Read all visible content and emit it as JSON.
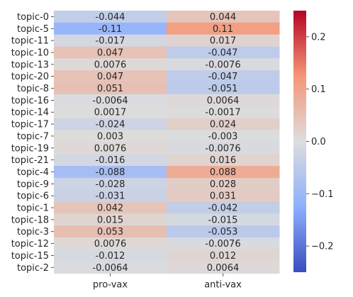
{
  "chart_data": {
    "type": "heatmap",
    "title": "",
    "xlabel": "",
    "ylabel": "",
    "columns": [
      "pro-vax",
      "anti-vax"
    ],
    "rows": [
      "topic-0",
      "topic-5",
      "topic-11",
      "topic-10",
      "topic-13",
      "topic-20",
      "topic-8",
      "topic-16",
      "topic-14",
      "topic-17",
      "topic-7",
      "topic-19",
      "topic-21",
      "topic-4",
      "topic-9",
      "topic-6",
      "topic-1",
      "topic-18",
      "topic-3",
      "topic-12",
      "topic-15",
      "topic-2"
    ],
    "values": [
      [
        -0.044,
        0.044
      ],
      [
        -0.11,
        0.11
      ],
      [
        -0.017,
        0.017
      ],
      [
        0.047,
        -0.047
      ],
      [
        0.0076,
        -0.0076
      ],
      [
        0.047,
        -0.047
      ],
      [
        0.051,
        -0.051
      ],
      [
        -0.0064,
        0.0064
      ],
      [
        0.0017,
        -0.0017
      ],
      [
        -0.024,
        0.024
      ],
      [
        0.003,
        -0.003
      ],
      [
        0.0076,
        -0.0076
      ],
      [
        -0.016,
        0.016
      ],
      [
        -0.088,
        0.088
      ],
      [
        -0.028,
        0.028
      ],
      [
        -0.031,
        0.031
      ],
      [
        0.042,
        -0.042
      ],
      [
        0.015,
        -0.015
      ],
      [
        0.053,
        -0.053
      ],
      [
        0.0076,
        -0.0076
      ],
      [
        -0.012,
        0.012
      ],
      [
        -0.0064,
        0.0064
      ]
    ],
    "cell_labels": [
      [
        "-0.044",
        "0.044"
      ],
      [
        "-0.11",
        "0.11"
      ],
      [
        "-0.017",
        "0.017"
      ],
      [
        "0.047",
        "-0.047"
      ],
      [
        "0.0076",
        "-0.0076"
      ],
      [
        "0.047",
        "-0.047"
      ],
      [
        "0.051",
        "-0.051"
      ],
      [
        "-0.0064",
        "0.0064"
      ],
      [
        "0.0017",
        "-0.0017"
      ],
      [
        "-0.024",
        "0.024"
      ],
      [
        "0.003",
        "-0.003"
      ],
      [
        "0.0076",
        "-0.0076"
      ],
      [
        "-0.016",
        "0.016"
      ],
      [
        "-0.088",
        "0.088"
      ],
      [
        "-0.028",
        "0.028"
      ],
      [
        "-0.031",
        "0.031"
      ],
      [
        "0.042",
        "-0.042"
      ],
      [
        "0.015",
        "-0.015"
      ],
      [
        "0.053",
        "-0.053"
      ],
      [
        "0.0076",
        "-0.0076"
      ],
      [
        "-0.012",
        "0.012"
      ],
      [
        "-0.0064",
        "0.0064"
      ]
    ],
    "colormap": "coolwarm",
    "vmin": -0.25,
    "vmax": 0.25,
    "colorbar": {
      "ticks": [
        -0.2,
        -0.1,
        0.0,
        0.1,
        0.2
      ],
      "tick_labels": [
        "−0.2",
        "−0.1",
        "0.0",
        "0.1",
        "0.2"
      ]
    },
    "grid": false,
    "legend": "colorbar-right"
  }
}
